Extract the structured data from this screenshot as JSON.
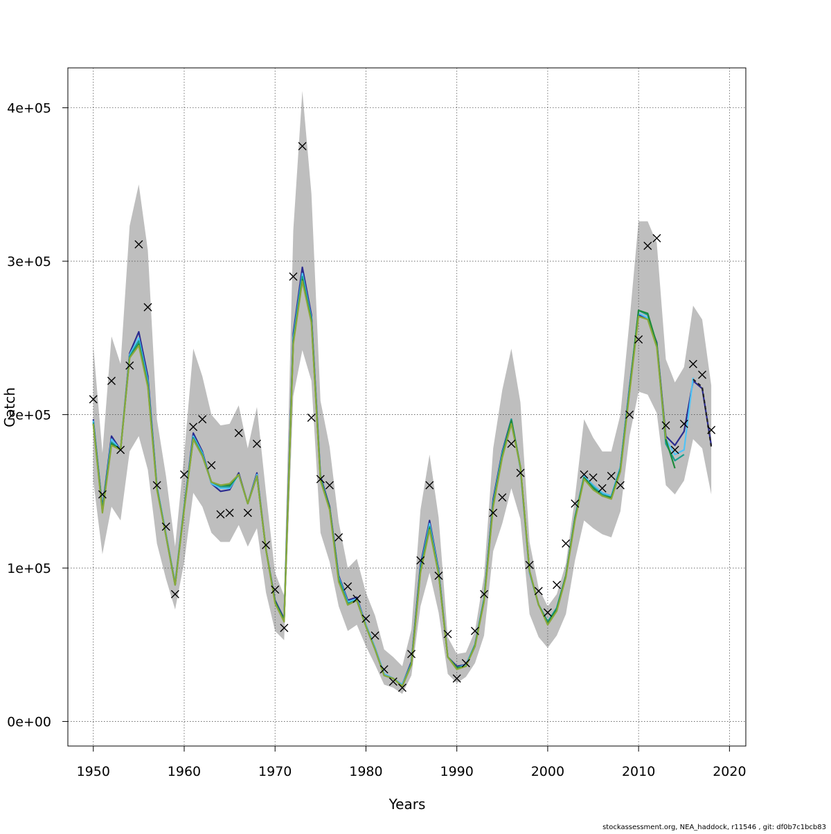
{
  "chart_data": {
    "type": "line",
    "xlabel": "Years",
    "ylabel": "Catch",
    "xlim": [
      1947.2,
      2021.8
    ],
    "ylim": [
      -16000,
      426000
    ],
    "xticks": [
      1950,
      1960,
      1970,
      1980,
      1990,
      2000,
      2010,
      2020
    ],
    "yticks": [
      0,
      100000,
      200000,
      300000,
      400000
    ],
    "ytick_labels": [
      "0e+00",
      "1e+05",
      "2e+05",
      "3e+05",
      "4e+05"
    ],
    "grid": true,
    "legend": "none",
    "ci_band": {
      "x": [
        1950,
        1951,
        1952,
        1953,
        1954,
        1955,
        1956,
        1957,
        1958,
        1959,
        1960,
        1961,
        1962,
        1963,
        1964,
        1965,
        1966,
        1967,
        1968,
        1969,
        1970,
        1971,
        1972,
        1973,
        1974,
        1975,
        1976,
        1977,
        1978,
        1979,
        1980,
        1981,
        1982,
        1983,
        1984,
        1985,
        1986,
        1987,
        1988,
        1989,
        1990,
        1991,
        1992,
        1993,
        1994,
        1995,
        1996,
        1997,
        1998,
        1999,
        2000,
        2001,
        2002,
        2003,
        2004,
        2005,
        2006,
        2007,
        2008,
        2009,
        2010,
        2011,
        2012,
        2013,
        2014,
        2015,
        2016,
        2017,
        2018
      ],
      "upper": [
        245000,
        175000,
        251000,
        233000,
        323000,
        350000,
        307000,
        197000,
        160000,
        114000,
        174000,
        243000,
        225000,
        200000,
        193000,
        194000,
        206000,
        178000,
        205000,
        149000,
        97000,
        82000,
        320000,
        411000,
        344000,
        209000,
        179000,
        130000,
        100000,
        106000,
        84000,
        69000,
        47000,
        42000,
        36000,
        60000,
        138000,
        174000,
        133000,
        55000,
        44000,
        45000,
        59000,
        95000,
        178000,
        216000,
        243000,
        208000,
        117000,
        87000,
        75000,
        83000,
        103000,
        146000,
        197000,
        185000,
        176000,
        176000,
        200000,
        261000,
        326000,
        326000,
        312000,
        236000,
        221000,
        231000,
        271000,
        262000,
        219000
      ],
      "lower": [
        157000,
        109000,
        140000,
        131000,
        176000,
        186000,
        164000,
        116000,
        93000,
        73000,
        104000,
        149000,
        140000,
        123000,
        117000,
        117000,
        128000,
        114000,
        126000,
        84000,
        59000,
        53000,
        212000,
        242000,
        222000,
        123000,
        104000,
        75000,
        59000,
        63000,
        49000,
        37000,
        24000,
        22000,
        18000,
        30000,
        75000,
        97000,
        71000,
        31000,
        25000,
        29000,
        38000,
        56000,
        111000,
        129000,
        152000,
        132000,
        70000,
        55000,
        48000,
        56000,
        70000,
        105000,
        131000,
        126000,
        122000,
        120000,
        137000,
        186000,
        215000,
        213000,
        201000,
        154000,
        148000,
        157000,
        184000,
        178000,
        148000
      ]
    },
    "observations": {
      "x": [
        1950,
        1951,
        1952,
        1953,
        1954,
        1955,
        1956,
        1957,
        1958,
        1959,
        1960,
        1961,
        1962,
        1963,
        1964,
        1965,
        1966,
        1967,
        1968,
        1969,
        1970,
        1971,
        1972,
        1973,
        1974,
        1975,
        1976,
        1977,
        1978,
        1979,
        1980,
        1981,
        1982,
        1983,
        1984,
        1985,
        1986,
        1987,
        1988,
        1989,
        1990,
        1991,
        1992,
        1993,
        1994,
        1995,
        1996,
        1997,
        1998,
        1999,
        2000,
        2001,
        2002,
        2003,
        2004,
        2005,
        2006,
        2007,
        2008,
        2009,
        2010,
        2011,
        2012,
        2013,
        2014,
        2015,
        2016,
        2017,
        2018
      ],
      "y": [
        210000,
        148000,
        222000,
        177000,
        232000,
        311000,
        270000,
        154000,
        127000,
        83000,
        161000,
        192000,
        197000,
        167000,
        135000,
        136000,
        188000,
        136000,
        181000,
        115000,
        86000,
        61000,
        290000,
        375000,
        198000,
        158000,
        154000,
        120000,
        88000,
        80000,
        67000,
        56000,
        34000,
        26000,
        22000,
        44000,
        105000,
        154000,
        95000,
        57000,
        28000,
        38000,
        59000,
        83000,
        136000,
        146000,
        181000,
        162000,
        102000,
        85000,
        71000,
        89000,
        116000,
        142000,
        161000,
        159000,
        152000,
        160000,
        154000,
        200000,
        249000,
        310000,
        315000,
        193000,
        177000,
        194000,
        233000,
        226000,
        190000
      ]
    },
    "series": [
      {
        "color": "#2b2b8f",
        "x": [
          1950,
          1951,
          1952,
          1953,
          1954,
          1955,
          1956,
          1957,
          1958,
          1959,
          1960,
          1961,
          1962,
          1963,
          1964,
          1965,
          1966,
          1967,
          1968,
          1969,
          1970,
          1971,
          1972,
          1973,
          1974,
          1975,
          1976,
          1977,
          1978,
          1979,
          1980,
          1981,
          1982,
          1983,
          1984,
          1985,
          1986,
          1987,
          1988,
          1989,
          1990,
          1991,
          1992,
          1993,
          1994,
          1995,
          1996,
          1997,
          1998,
          1999,
          2000,
          2001,
          2002,
          2003,
          2004,
          2005,
          2006,
          2007,
          2008,
          2009,
          2010,
          2011,
          2012,
          2013,
          2014,
          2015,
          2016,
          2017,
          2018
        ],
        "y": [
          197000,
          139000,
          186000,
          177000,
          240000,
          254000,
          225000,
          153000,
          122000,
          90000,
          140000,
          188000,
          176000,
          155000,
          150000,
          151000,
          162000,
          142000,
          162000,
          112000,
          79000,
          67000,
          253000,
          296000,
          265000,
          160000,
          140000,
          95000,
          79000,
          81000,
          63000,
          48000,
          31000,
          28000,
          24000,
          39000,
          102000,
          131000,
          99000,
          42000,
          36000,
          37000,
          50000,
          80000,
          145000,
          176000,
          197000,
          165000,
          97000,
          76000,
          65000,
          74000,
          95000,
          133000,
          160000,
          154000,
          149000,
          147000,
          166000,
          218000,
          265000,
          263000,
          247000,
          186000,
          180000,
          189000,
          222000,
          217000,
          180000
        ]
      },
      {
        "color": "#4fc3f7",
        "x": [
          1950,
          1951,
          1952,
          1953,
          1954,
          1955,
          1956,
          1957,
          1958,
          1959,
          1960,
          1961,
          1962,
          1963,
          1964,
          1965,
          1966,
          1967,
          1968,
          1969,
          1970,
          1971,
          1972,
          1973,
          1974,
          1975,
          1976,
          1977,
          1978,
          1979,
          1980,
          1981,
          1982,
          1983,
          1984,
          1985,
          1986,
          1987,
          1988,
          1989,
          1990,
          1991,
          1992,
          1993,
          1994,
          1995,
          1996,
          1997,
          1998,
          1999,
          2000,
          2001,
          2002,
          2003,
          2004,
          2005,
          2006,
          2007,
          2008,
          2009,
          2010,
          2011,
          2012,
          2013,
          2014,
          2015,
          2016
        ],
        "y": [
          196000,
          138000,
          184000,
          177000,
          239000,
          250000,
          222000,
          153000,
          122000,
          90000,
          140000,
          186000,
          175000,
          155000,
          152000,
          152000,
          161000,
          142000,
          161000,
          112000,
          78000,
          66000,
          250000,
          292000,
          263000,
          159000,
          139000,
          94000,
          78000,
          80000,
          63000,
          48000,
          31000,
          28000,
          24000,
          38000,
          100000,
          129000,
          98000,
          42000,
          35000,
          37000,
          50000,
          80000,
          143000,
          175000,
          196000,
          165000,
          97000,
          76000,
          65000,
          74000,
          95000,
          133000,
          160000,
          154000,
          149000,
          147000,
          166000,
          217000,
          266000,
          263000,
          246000,
          184000,
          174000,
          177000,
          224000
        ]
      },
      {
        "color": "#1a9e8f",
        "x": [
          1950,
          1951,
          1952,
          1953,
          1954,
          1955,
          1956,
          1957,
          1958,
          1959,
          1960,
          1961,
          1962,
          1963,
          1964,
          1965,
          1966,
          1967,
          1968,
          1969,
          1970,
          1971,
          1972,
          1973,
          1974,
          1975,
          1976,
          1977,
          1978,
          1979,
          1980,
          1981,
          1982,
          1983,
          1984,
          1985,
          1986,
          1987,
          1988,
          1989,
          1990,
          1991,
          1992,
          1993,
          1994,
          1995,
          1996,
          1997,
          1998,
          1999,
          2000,
          2001,
          2002,
          2003,
          2004,
          2005,
          2006,
          2007,
          2008,
          2009,
          2010,
          2011,
          2012,
          2013,
          2014,
          2015
        ],
        "y": [
          195000,
          138000,
          182000,
          177000,
          238000,
          248000,
          220000,
          152000,
          121000,
          89000,
          139000,
          185000,
          174000,
          156000,
          153000,
          153000,
          161000,
          142000,
          160000,
          112000,
          78000,
          66000,
          248000,
          290000,
          262000,
          158000,
          139000,
          93000,
          77000,
          79000,
          62000,
          47000,
          30000,
          28000,
          23000,
          38000,
          99000,
          127000,
          97000,
          42000,
          35000,
          36000,
          50000,
          79000,
          142000,
          174000,
          197000,
          166000,
          98000,
          76000,
          65000,
          74000,
          95000,
          133000,
          159000,
          153000,
          148000,
          146000,
          165000,
          216000,
          268000,
          265000,
          246000,
          181000,
          170000,
          174000
        ]
      },
      {
        "color": "#1e8a3a",
        "x": [
          1950,
          1951,
          1952,
          1953,
          1954,
          1955,
          1956,
          1957,
          1958,
          1959,
          1960,
          1961,
          1962,
          1963,
          1964,
          1965,
          1966,
          1967,
          1968,
          1969,
          1970,
          1971,
          1972,
          1973,
          1974,
          1975,
          1976,
          1977,
          1978,
          1979,
          1980,
          1981,
          1982,
          1983,
          1984,
          1985,
          1986,
          1987,
          1988,
          1989,
          1990,
          1991,
          1992,
          1993,
          1994,
          1995,
          1996,
          1997,
          1998,
          1999,
          2000,
          2001,
          2002,
          2003,
          2004,
          2005,
          2006,
          2007,
          2008,
          2009,
          2010,
          2011,
          2012,
          2013,
          2014
        ],
        "y": [
          194000,
          137000,
          181000,
          177000,
          237000,
          246000,
          219000,
          152000,
          121000,
          89000,
          139000,
          184000,
          173000,
          156000,
          154000,
          154000,
          161000,
          142000,
          160000,
          112000,
          78000,
          66000,
          247000,
          288000,
          261000,
          158000,
          139000,
          92000,
          76000,
          79000,
          62000,
          47000,
          30000,
          28000,
          23000,
          37000,
          98000,
          126000,
          96000,
          42000,
          35000,
          36000,
          49000,
          79000,
          141000,
          173000,
          196000,
          166000,
          98000,
          76000,
          64000,
          73000,
          95000,
          132000,
          159000,
          152000,
          147000,
          146000,
          164000,
          215000,
          268000,
          266000,
          246000,
          184000,
          165000
        ]
      },
      {
        "color": "#8aa83a",
        "x": [
          1950,
          1951,
          1952,
          1953,
          1954,
          1955,
          1956,
          1957,
          1958,
          1959,
          1960,
          1961,
          1962,
          1963,
          1964,
          1965,
          1966,
          1967,
          1968,
          1969,
          1970,
          1971,
          1972,
          1973,
          1974,
          1975,
          1976,
          1977,
          1978,
          1979,
          1980,
          1981,
          1982,
          1983,
          1984,
          1985,
          1986,
          1987,
          1988,
          1989,
          1990,
          1991,
          1992,
          1993,
          1994,
          1995,
          1996,
          1997,
          1998,
          1999,
          2000,
          2001,
          2002,
          2003,
          2004,
          2005,
          2006,
          2007,
          2008,
          2009,
          2010,
          2011,
          2012,
          2013
        ],
        "y": [
          194000,
          136000,
          180000,
          177000,
          237000,
          245000,
          218000,
          151000,
          121000,
          89000,
          138000,
          184000,
          173000,
          156000,
          154000,
          155000,
          161000,
          142000,
          160000,
          112000,
          77000,
          65000,
          246000,
          287000,
          260000,
          157000,
          138000,
          91000,
          76000,
          79000,
          62000,
          47000,
          30000,
          28000,
          23000,
          37000,
          97000,
          125000,
          96000,
          42000,
          34000,
          36000,
          49000,
          78000,
          140000,
          172000,
          194000,
          166000,
          98000,
          76000,
          63000,
          72000,
          94000,
          131000,
          158000,
          151000,
          147000,
          145000,
          163000,
          214000,
          264000,
          262000,
          244000,
          184000
        ]
      },
      {
        "color": "#222222",
        "dashed": true,
        "x": [
          2016,
          2017,
          2018
        ],
        "y": [
          223000,
          218000,
          179000
        ]
      }
    ]
  },
  "footer": "stockassessment.org, NEA_haddock, r11546 , git: df0b7c1bcb83"
}
